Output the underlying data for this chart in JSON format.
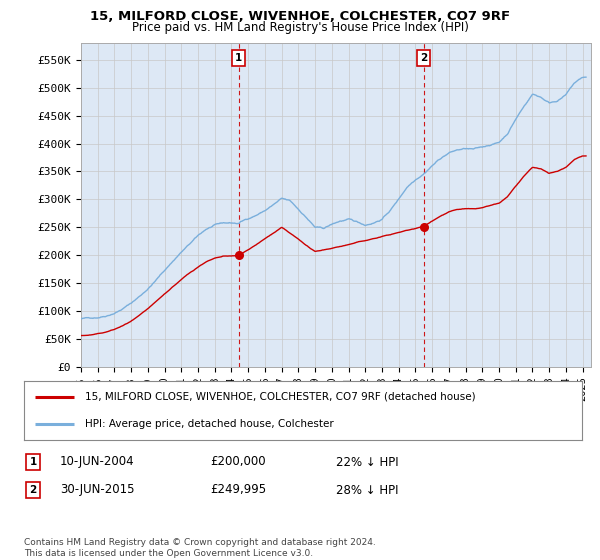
{
  "title1": "15, MILFORD CLOSE, WIVENHOE, COLCHESTER, CO7 9RF",
  "title2": "Price paid vs. HM Land Registry's House Price Index (HPI)",
  "ylabel_ticks": [
    "£0",
    "£50K",
    "£100K",
    "£150K",
    "£200K",
    "£250K",
    "£300K",
    "£350K",
    "£400K",
    "£450K",
    "£500K",
    "£550K"
  ],
  "ytick_values": [
    0,
    50000,
    100000,
    150000,
    200000,
    250000,
    300000,
    350000,
    400000,
    450000,
    500000,
    550000
  ],
  "hpi_color": "#7aafdc",
  "price_color": "#cc0000",
  "bg_color": "#dde8f5",
  "plot_bg": "#ffffff",
  "legend_label1": "15, MILFORD CLOSE, WIVENHOE, COLCHESTER, CO7 9RF (detached house)",
  "legend_label2": "HPI: Average price, detached house, Colchester",
  "annotation1": {
    "label": "1",
    "date": "10-JUN-2004",
    "price": "£200,000",
    "pct": "22% ↓ HPI",
    "x_year": 2004.44,
    "sale_price": 200000
  },
  "annotation2": {
    "label": "2",
    "date": "30-JUN-2015",
    "price": "£249,995",
    "pct": "28% ↓ HPI",
    "x_year": 2015.5,
    "sale_price": 249995
  },
  "footer": "Contains HM Land Registry data © Crown copyright and database right 2024.\nThis data is licensed under the Open Government Licence v3.0.",
  "xmin": 1995,
  "xmax": 2025.5,
  "ymin": 0,
  "ymax": 580000
}
